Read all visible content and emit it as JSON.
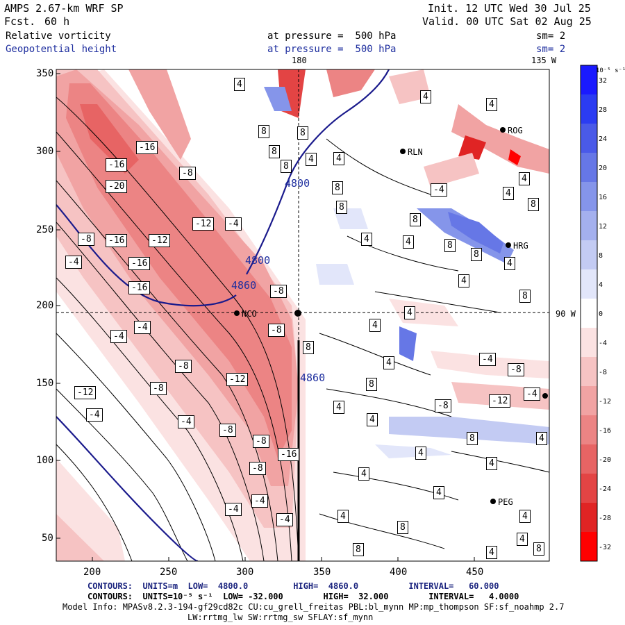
{
  "header": {
    "model": "AMPS 2.67-km WRF SP",
    "fcst_label": "Fcst.",
    "fcst_value": "60 h",
    "init": "Init. 12 UTC Wed 30 Jul 25",
    "valid": "Valid. 00 UTC Sat 02 Aug 25",
    "field1": "Relative vorticity",
    "field1_pressure": "at pressure =  500 hPa",
    "field1_sm": "sm= 2",
    "field2": "Geopotential height",
    "field2_pressure": "at pressure =  500 hPa",
    "field2_sm": "sm= 2"
  },
  "map": {
    "top_lon_labels": [
      "180",
      "135 W"
    ],
    "right_lon_label": "90 W",
    "x_ticks": [
      "200",
      "250",
      "300",
      "350",
      "400",
      "450"
    ],
    "y_ticks": [
      "350",
      "300",
      "250",
      "200",
      "150",
      "100",
      "50"
    ],
    "stations": [
      "NCO",
      "HRG",
      "RLN",
      "ROG",
      "PEG"
    ],
    "height_contours": [
      "4800",
      "4860",
      "4800",
      "4860"
    ],
    "vorticity_labels_neg": [
      "-16",
      "-16",
      "-20",
      "-16",
      "-12",
      "-4",
      "-8",
      "-12",
      "-4",
      "-16",
      "-16",
      "-8",
      "-4",
      "-4",
      "-8",
      "-12",
      "-8",
      "-4",
      "-8",
      "-4",
      "-8",
      "-8",
      "-8",
      "-4",
      "-16",
      "-4",
      "-12",
      "-4",
      "-8",
      "-8",
      "-12",
      "-4",
      "-4",
      "-4",
      "-8"
    ],
    "vorticity_labels_pos": [
      "4",
      "8",
      "8",
      "8",
      "4",
      "4",
      "8",
      "8",
      "8",
      "4",
      "4",
      "8",
      "8",
      "4",
      "4",
      "8",
      "4",
      "8",
      "4",
      "8",
      "4",
      "4",
      "8",
      "4",
      "8",
      "4",
      "4",
      "4",
      "8",
      "4",
      "4",
      "4",
      "4",
      "8",
      "4",
      "8",
      "4",
      "8",
      "4",
      "4",
      "4",
      "4"
    ]
  },
  "colorbar": {
    "unit": "10⁻⁵ s⁻¹",
    "labels": [
      "32",
      "28",
      "24",
      "20",
      "16",
      "12",
      "8",
      "4",
      "0",
      "-4",
      "-8",
      "-12",
      "-16",
      "-20",
      "-24",
      "-28",
      "-32"
    ],
    "colors": [
      "#1a1aff",
      "#2b3cf2",
      "#4a5ae8",
      "#6677e6",
      "#8595ea",
      "#a4b0ee",
      "#c3cbf3",
      "#e2e6fa",
      "#ffffff",
      "#fbe2e2",
      "#f6c3c3",
      "#f1a3a3",
      "#ec8484",
      "#e76464",
      "#e34444",
      "#e02424",
      "#ff0000"
    ]
  },
  "footer": {
    "contour1": "CONTOURS:  UNITS=m  LOW=  4800.0         HIGH=  4860.0          INTERVAL=   60.000",
    "contour2": "CONTOURS:  UNITS=10⁻⁵ s⁻¹  LOW= -32.000        HIGH=  32.000        INTERVAL=   4.0000",
    "model_info": "Model Info: MPASv8.2.3-194-gf29cd82c CU:cu_grell_freitas PBL:bl_mynn MP:mp_thompson SF:sf_noahmp 2.7",
    "physics": "LW:rrtmg_lw SW:rrtmg_sw SFLAY:sf_mynn"
  }
}
